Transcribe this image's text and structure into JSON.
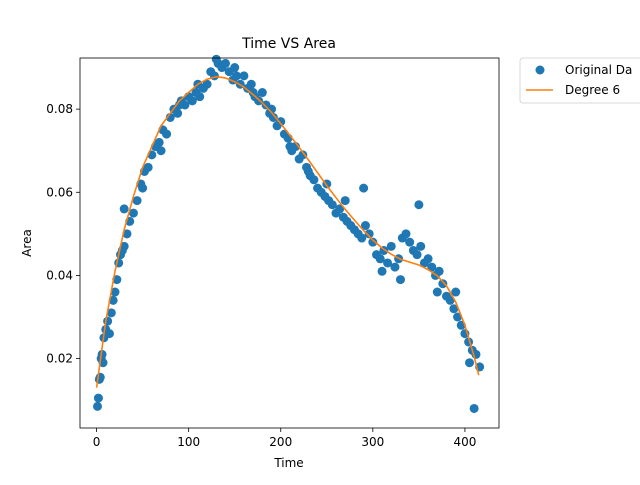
{
  "chart_data": {
    "type": "scatter",
    "title": "Time VS Area",
    "xlabel": "Time",
    "ylabel": "Area",
    "xlim": [
      -18,
      437
    ],
    "ylim": [
      0.0033,
      0.0923
    ],
    "xticks": [
      0,
      100,
      200,
      300,
      400
    ],
    "xtick_labels": [
      "0",
      "100",
      "200",
      "300",
      "400"
    ],
    "yticks": [
      0.02,
      0.04,
      0.06,
      0.08
    ],
    "ytick_labels": [
      "0.02",
      "0.04",
      "0.06",
      "0.08"
    ],
    "grid": false,
    "legend_position": "outside top-right",
    "colors": {
      "scatter": "#1f77b4",
      "line": "#ff7f0e"
    },
    "series": [
      {
        "name": "Original Da",
        "kind": "scatter",
        "x": [
          1,
          2,
          3,
          4,
          5,
          6,
          7,
          8,
          10,
          12,
          14,
          16,
          18,
          20,
          22,
          24,
          26,
          28,
          30,
          33,
          36,
          40,
          44,
          48,
          52,
          56,
          60,
          64,
          68,
          72,
          76,
          80,
          84,
          88,
          92,
          96,
          100,
          104,
          108,
          112,
          116,
          120,
          124,
          128,
          132,
          136,
          140,
          144,
          148,
          152,
          156,
          160,
          164,
          168,
          172,
          176,
          180,
          184,
          188,
          192,
          196,
          200,
          204,
          208,
          212,
          216,
          220,
          224,
          228,
          232,
          236,
          240,
          244,
          248,
          252,
          256,
          260,
          264,
          268,
          272,
          276,
          280,
          284,
          288,
          292,
          296,
          300,
          304,
          308,
          312,
          316,
          320,
          324,
          328,
          332,
          336,
          340,
          344,
          348,
          352,
          356,
          360,
          364,
          368,
          372,
          376,
          380,
          384,
          388,
          392,
          396,
          400,
          404,
          408,
          412,
          416,
          30,
          50,
          70,
          90,
          110,
          130,
          150,
          170,
          190,
          210,
          230,
          250,
          270,
          290,
          310,
          330,
          350,
          370,
          390,
          405,
          410
        ],
        "y": [
          0.0085,
          0.0105,
          0.015,
          0.0155,
          0.02,
          0.021,
          0.019,
          0.025,
          0.027,
          0.029,
          0.026,
          0.031,
          0.034,
          0.036,
          0.039,
          0.043,
          0.045,
          0.046,
          0.047,
          0.05,
          0.053,
          0.055,
          0.058,
          0.062,
          0.065,
          0.066,
          0.069,
          0.071,
          0.072,
          0.075,
          0.074,
          0.078,
          0.08,
          0.079,
          0.082,
          0.081,
          0.083,
          0.082,
          0.084,
          0.083,
          0.085,
          0.086,
          0.089,
          0.088,
          0.091,
          0.09,
          0.091,
          0.089,
          0.087,
          0.088,
          0.086,
          0.088,
          0.085,
          0.086,
          0.083,
          0.082,
          0.084,
          0.081,
          0.079,
          0.078,
          0.076,
          0.077,
          0.074,
          0.073,
          0.07,
          0.071,
          0.068,
          0.069,
          0.066,
          0.064,
          0.063,
          0.061,
          0.06,
          0.059,
          0.058,
          0.057,
          0.055,
          0.056,
          0.054,
          0.053,
          0.052,
          0.051,
          0.05,
          0.049,
          0.052,
          0.05,
          0.048,
          0.045,
          0.044,
          0.046,
          0.043,
          0.047,
          0.042,
          0.044,
          0.049,
          0.05,
          0.048,
          0.046,
          0.045,
          0.047,
          0.043,
          0.044,
          0.042,
          0.04,
          0.041,
          0.038,
          0.035,
          0.034,
          0.032,
          0.03,
          0.028,
          0.026,
          0.024,
          0.022,
          0.021,
          0.018,
          0.056,
          0.061,
          0.07,
          0.081,
          0.086,
          0.092,
          0.09,
          0.084,
          0.08,
          0.071,
          0.065,
          0.062,
          0.058,
          0.061,
          0.041,
          0.039,
          0.057,
          0.036,
          0.036,
          0.019,
          0.008
        ]
      },
      {
        "name": "Degree 6",
        "kind": "line",
        "x": [
          0,
          10,
          20,
          30,
          40,
          50,
          60,
          70,
          80,
          90,
          100,
          110,
          120,
          130,
          140,
          150,
          160,
          170,
          180,
          190,
          200,
          210,
          220,
          230,
          240,
          250,
          260,
          270,
          280,
          290,
          300,
          310,
          320,
          330,
          340,
          350,
          360,
          370,
          380,
          390,
          400,
          410,
          415
        ],
        "y": [
          0.013,
          0.029,
          0.041,
          0.051,
          0.059,
          0.066,
          0.071,
          0.076,
          0.079,
          0.082,
          0.084,
          0.086,
          0.0872,
          0.0878,
          0.0875,
          0.0866,
          0.0853,
          0.0835,
          0.0815,
          0.0792,
          0.0765,
          0.0737,
          0.0708,
          0.0678,
          0.0647,
          0.0616,
          0.0587,
          0.0559,
          0.0533,
          0.0508,
          0.0485,
          0.0466,
          0.0451,
          0.0439,
          0.0432,
          0.0425,
          0.0414,
          0.0399,
          0.0375,
          0.0336,
          0.028,
          0.0205,
          0.016
        ]
      }
    ]
  }
}
